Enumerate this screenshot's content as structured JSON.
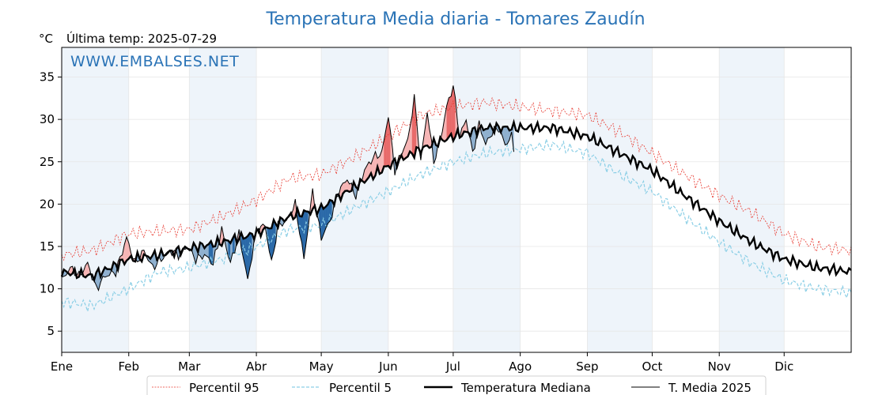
{
  "chart_data": {
    "type": "line",
    "title": "Temperatura Media diaria - Tomares  Zaudín",
    "unit": "°C",
    "last_temp_label": "Última temp: 2025-07-29",
    "watermark": "WWW.EMBALSES.NET",
    "x_tick_labels": [
      "Ene",
      "Feb",
      "Mar",
      "Abr",
      "May",
      "Jun",
      "Jul",
      "Ago",
      "Sep",
      "Oct",
      "Nov",
      "Dic"
    ],
    "x_tick_days": [
      1,
      32,
      60,
      91,
      121,
      152,
      182,
      213,
      244,
      274,
      305,
      335
    ],
    "xlim": [
      1,
      366
    ],
    "ylim": [
      2.5,
      38.5
    ],
    "y_ticks": [
      5,
      10,
      15,
      20,
      25,
      30,
      35
    ],
    "grid": true,
    "legend_position": "bottom",
    "colors": {
      "p95": "#e8392f",
      "p5": "#8ccfe6",
      "median": "#000000",
      "year": "#000000",
      "above_light": "#f6b5b5",
      "above_dark": "#e86a6a",
      "below_light": "#8fb0cf",
      "below_dark": "#2a69a8",
      "band": "#eef4fa"
    },
    "anchor_days": [
      1,
      15,
      32,
      46,
      60,
      75,
      91,
      106,
      121,
      136,
      152,
      167,
      182,
      197,
      213,
      228,
      244,
      259,
      274,
      289,
      305,
      320,
      335,
      350,
      366
    ],
    "series": [
      {
        "name": "Percentil 95",
        "key": "p95",
        "values": [
          14.0,
          14.5,
          16.5,
          16.8,
          17.0,
          18.5,
          20.5,
          23.0,
          23.5,
          25.5,
          28.0,
          30.5,
          31.5,
          32.0,
          31.5,
          31.0,
          30.5,
          28.5,
          26.0,
          23.5,
          21.0,
          19.0,
          16.5,
          15.0,
          14.5
        ]
      },
      {
        "name": "Percentil 5",
        "key": "p5",
        "values": [
          8.5,
          8.0,
          10.0,
          12.0,
          12.5,
          13.5,
          15.0,
          17.0,
          17.5,
          19.5,
          21.5,
          23.5,
          25.0,
          26.0,
          26.5,
          27.0,
          26.0,
          23.5,
          21.5,
          18.5,
          15.5,
          13.0,
          11.0,
          10.0,
          9.5
        ]
      },
      {
        "name": "Temperatura Mediana",
        "key": "median",
        "values": [
          12.0,
          11.5,
          13.5,
          14.0,
          14.8,
          15.5,
          16.5,
          18.5,
          19.5,
          22.0,
          24.5,
          26.5,
          28.0,
          29.0,
          29.0,
          29.0,
          28.0,
          26.0,
          24.0,
          21.0,
          18.0,
          15.5,
          13.5,
          12.5,
          12.0
        ]
      },
      {
        "name": "T. Media 2025",
        "key": "year",
        "days": [
          1,
          5,
          9,
          13,
          17,
          21,
          26,
          31,
          35,
          39,
          43,
          47,
          51,
          55,
          59,
          63,
          67,
          71,
          75,
          79,
          83,
          87,
          91,
          95,
          98,
          101,
          105,
          109,
          113,
          117,
          121,
          125,
          129,
          133,
          137,
          141,
          145,
          149,
          152,
          155,
          158,
          161,
          164,
          167,
          170,
          173,
          176,
          179,
          182,
          185,
          188,
          191,
          194,
          197,
          200,
          203,
          206,
          209,
          210
        ],
        "values": [
          11.0,
          12.5,
          11.5,
          13.0,
          10.0,
          11.5,
          12.0,
          16.0,
          13.0,
          14.5,
          12.5,
          13.5,
          14.5,
          14.0,
          15.0,
          13.5,
          14.0,
          13.0,
          17.0,
          13.0,
          16.5,
          11.0,
          17.0,
          17.5,
          13.0,
          17.5,
          18.0,
          20.0,
          13.5,
          21.5,
          16.0,
          18.0,
          21.5,
          23.0,
          21.0,
          24.0,
          25.5,
          26.0,
          30.5,
          24.0,
          26.0,
          27.5,
          32.5,
          25.0,
          31.0,
          25.0,
          27.5,
          31.5,
          34.0,
          28.0,
          30.0,
          26.0,
          29.5,
          27.0,
          28.5,
          29.0,
          27.0,
          28.0,
          26.5
        ]
      }
    ]
  }
}
